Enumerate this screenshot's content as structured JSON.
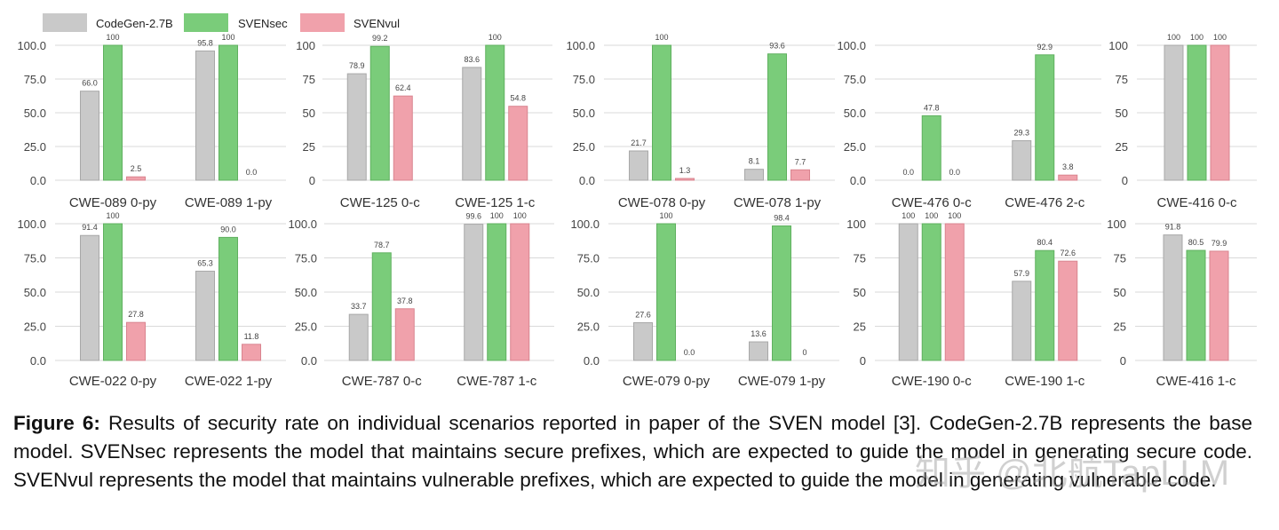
{
  "legend": [
    {
      "name": "CodeGen-2.7B",
      "color": "#c9c9c9"
    },
    {
      "name": "SVENsec",
      "color": "#7acc7a"
    },
    {
      "name": "SVENvul",
      "color": "#f0a1ab"
    }
  ],
  "chart_data": [
    {
      "type": "bar",
      "ylim": [
        0,
        100
      ],
      "yticks": [
        "0.0",
        "25.0",
        "50.0",
        "75.0",
        "100.0"
      ],
      "grid": true,
      "legend": "top-left",
      "categories": [
        "CWE-089 0-py",
        "CWE-089 1-py"
      ],
      "series": [
        {
          "name": "CodeGen-2.7B",
          "values": [
            66.0,
            95.8
          ],
          "labels": [
            "66.0",
            "95.8"
          ]
        },
        {
          "name": "SVENsec",
          "values": [
            100,
            100
          ],
          "labels": [
            "100",
            "100"
          ]
        },
        {
          "name": "SVENvul",
          "values": [
            2.5,
            0.0
          ],
          "labels": [
            "2.5",
            "0.0"
          ]
        }
      ]
    },
    {
      "type": "bar",
      "ylim": [
        0,
        100
      ],
      "yticks": [
        "0",
        "25",
        "50",
        "75",
        "100"
      ],
      "grid": true,
      "categories": [
        "CWE-125 0-c",
        "CWE-125 1-c"
      ],
      "series": [
        {
          "name": "CodeGen-2.7B",
          "values": [
            78.9,
            83.6
          ],
          "labels": [
            "78.9",
            "83.6"
          ]
        },
        {
          "name": "SVENsec",
          "values": [
            99.2,
            100
          ],
          "labels": [
            "99.2",
            "100"
          ]
        },
        {
          "name": "SVENvul",
          "values": [
            62.4,
            54.8
          ],
          "labels": [
            "62.4",
            "54.8"
          ]
        }
      ]
    },
    {
      "type": "bar",
      "ylim": [
        0,
        100
      ],
      "yticks": [
        "0.0",
        "25.0",
        "50.0",
        "75.0",
        "100.0"
      ],
      "grid": true,
      "categories": [
        "CWE-078 0-py",
        "CWE-078 1-py"
      ],
      "series": [
        {
          "name": "CodeGen-2.7B",
          "values": [
            21.7,
            8.1
          ],
          "labels": [
            "21.7",
            "8.1"
          ]
        },
        {
          "name": "SVENsec",
          "values": [
            100,
            93.6
          ],
          "labels": [
            "100",
            "93.6"
          ]
        },
        {
          "name": "SVENvul",
          "values": [
            1.3,
            7.7
          ],
          "labels": [
            "1.3",
            "7.7"
          ]
        }
      ]
    },
    {
      "type": "bar",
      "ylim": [
        0,
        100
      ],
      "yticks": [
        "0.0",
        "25.0",
        "50.0",
        "75.0",
        "100.0"
      ],
      "grid": true,
      "categories": [
        "CWE-476 0-c",
        "CWE-476 2-c"
      ],
      "series": [
        {
          "name": "CodeGen-2.7B",
          "values": [
            0.0,
            29.3
          ],
          "labels": [
            "0.0",
            "29.3"
          ]
        },
        {
          "name": "SVENsec",
          "values": [
            47.8,
            92.9
          ],
          "labels": [
            "47.8",
            "92.9"
          ]
        },
        {
          "name": "SVENvul",
          "values": [
            0.0,
            3.8
          ],
          "labels": [
            "0.0",
            "3.8"
          ]
        }
      ]
    },
    {
      "type": "bar",
      "ylim": [
        0,
        100
      ],
      "yticks": [
        "0",
        "25",
        "50",
        "75",
        "100"
      ],
      "grid": true,
      "categories": [
        "CWE-416 0-c"
      ],
      "series": [
        {
          "name": "CodeGen-2.7B",
          "values": [
            100
          ],
          "labels": [
            "100"
          ]
        },
        {
          "name": "SVENsec",
          "values": [
            100
          ],
          "labels": [
            "100"
          ]
        },
        {
          "name": "SVENvul",
          "values": [
            100
          ],
          "labels": [
            "100"
          ]
        }
      ]
    },
    {
      "type": "bar",
      "ylim": [
        0,
        100
      ],
      "yticks": [
        "0.0",
        "25.0",
        "50.0",
        "75.0",
        "100.0"
      ],
      "grid": true,
      "categories": [
        "CWE-022 0-py",
        "CWE-022 1-py"
      ],
      "series": [
        {
          "name": "CodeGen-2.7B",
          "values": [
            91.4,
            65.3
          ],
          "labels": [
            "91.4",
            "65.3"
          ]
        },
        {
          "name": "SVENsec",
          "values": [
            100,
            90.0
          ],
          "labels": [
            "100",
            "90.0"
          ]
        },
        {
          "name": "SVENvul",
          "values": [
            27.8,
            11.8
          ],
          "labels": [
            "27.8",
            "11.8"
          ]
        }
      ]
    },
    {
      "type": "bar",
      "ylim": [
        0,
        100
      ],
      "yticks": [
        "0.0",
        "25.0",
        "50.0",
        "75.0",
        "100.0"
      ],
      "grid": true,
      "categories": [
        "CWE-787 0-c",
        "CWE-787 1-c"
      ],
      "series": [
        {
          "name": "CodeGen-2.7B",
          "values": [
            33.7,
            99.6
          ],
          "labels": [
            "33.7",
            "99.6"
          ]
        },
        {
          "name": "SVENsec",
          "values": [
            78.7,
            100
          ],
          "labels": [
            "78.7",
            "100"
          ]
        },
        {
          "name": "SVENvul",
          "values": [
            37.8,
            100
          ],
          "labels": [
            "37.8",
            "100"
          ]
        }
      ]
    },
    {
      "type": "bar",
      "ylim": [
        0,
        100
      ],
      "yticks": [
        "0.0",
        "25.0",
        "50.0",
        "75.0",
        "100.0"
      ],
      "grid": true,
      "categories": [
        "CWE-079 0-py",
        "CWE-079 1-py"
      ],
      "series": [
        {
          "name": "CodeGen-2.7B",
          "values": [
            27.6,
            13.6
          ],
          "labels": [
            "27.6",
            "13.6"
          ]
        },
        {
          "name": "SVENsec",
          "values": [
            100,
            98.4
          ],
          "labels": [
            "100",
            "98.4"
          ]
        },
        {
          "name": "SVENvul",
          "values": [
            0.0,
            0
          ],
          "labels": [
            "0.0",
            "0"
          ]
        }
      ]
    },
    {
      "type": "bar",
      "ylim": [
        0,
        100
      ],
      "yticks": [
        "0",
        "25",
        "50",
        "75",
        "100"
      ],
      "grid": true,
      "categories": [
        "CWE-190 0-c",
        "CWE-190 1-c"
      ],
      "series": [
        {
          "name": "CodeGen-2.7B",
          "values": [
            100,
            57.9
          ],
          "labels": [
            "100",
            "57.9"
          ]
        },
        {
          "name": "SVENsec",
          "values": [
            100,
            80.4
          ],
          "labels": [
            "100",
            "80.4"
          ]
        },
        {
          "name": "SVENvul",
          "values": [
            100,
            72.6
          ],
          "labels": [
            "100",
            "72.6"
          ]
        }
      ]
    },
    {
      "type": "bar",
      "ylim": [
        0,
        100
      ],
      "yticks": [
        "0",
        "25",
        "50",
        "75",
        "100"
      ],
      "grid": true,
      "categories": [
        "CWE-416 1-c"
      ],
      "series": [
        {
          "name": "CodeGen-2.7B",
          "values": [
            91.8
          ],
          "labels": [
            "91.8"
          ]
        },
        {
          "name": "SVENsec",
          "values": [
            80.5
          ],
          "labels": [
            "80.5"
          ]
        },
        {
          "name": "SVENvul",
          "values": [
            79.9
          ],
          "labels": [
            "79.9"
          ]
        }
      ]
    }
  ],
  "caption": {
    "label": "Figure 6:",
    "text": " Results of security rate on individual scenarios reported in paper of the SVEN model [3]. CodeGen-2.7B represents the base model. SVENsec represents the model that maintains secure prefixes, which are expected to guide the model in generating secure code. SVENvul represents the model that maintains vulnerable prefixes, which are expected to guide the model in generating vulnerable code."
  },
  "watermark": "知乎 @北航TapLLM"
}
